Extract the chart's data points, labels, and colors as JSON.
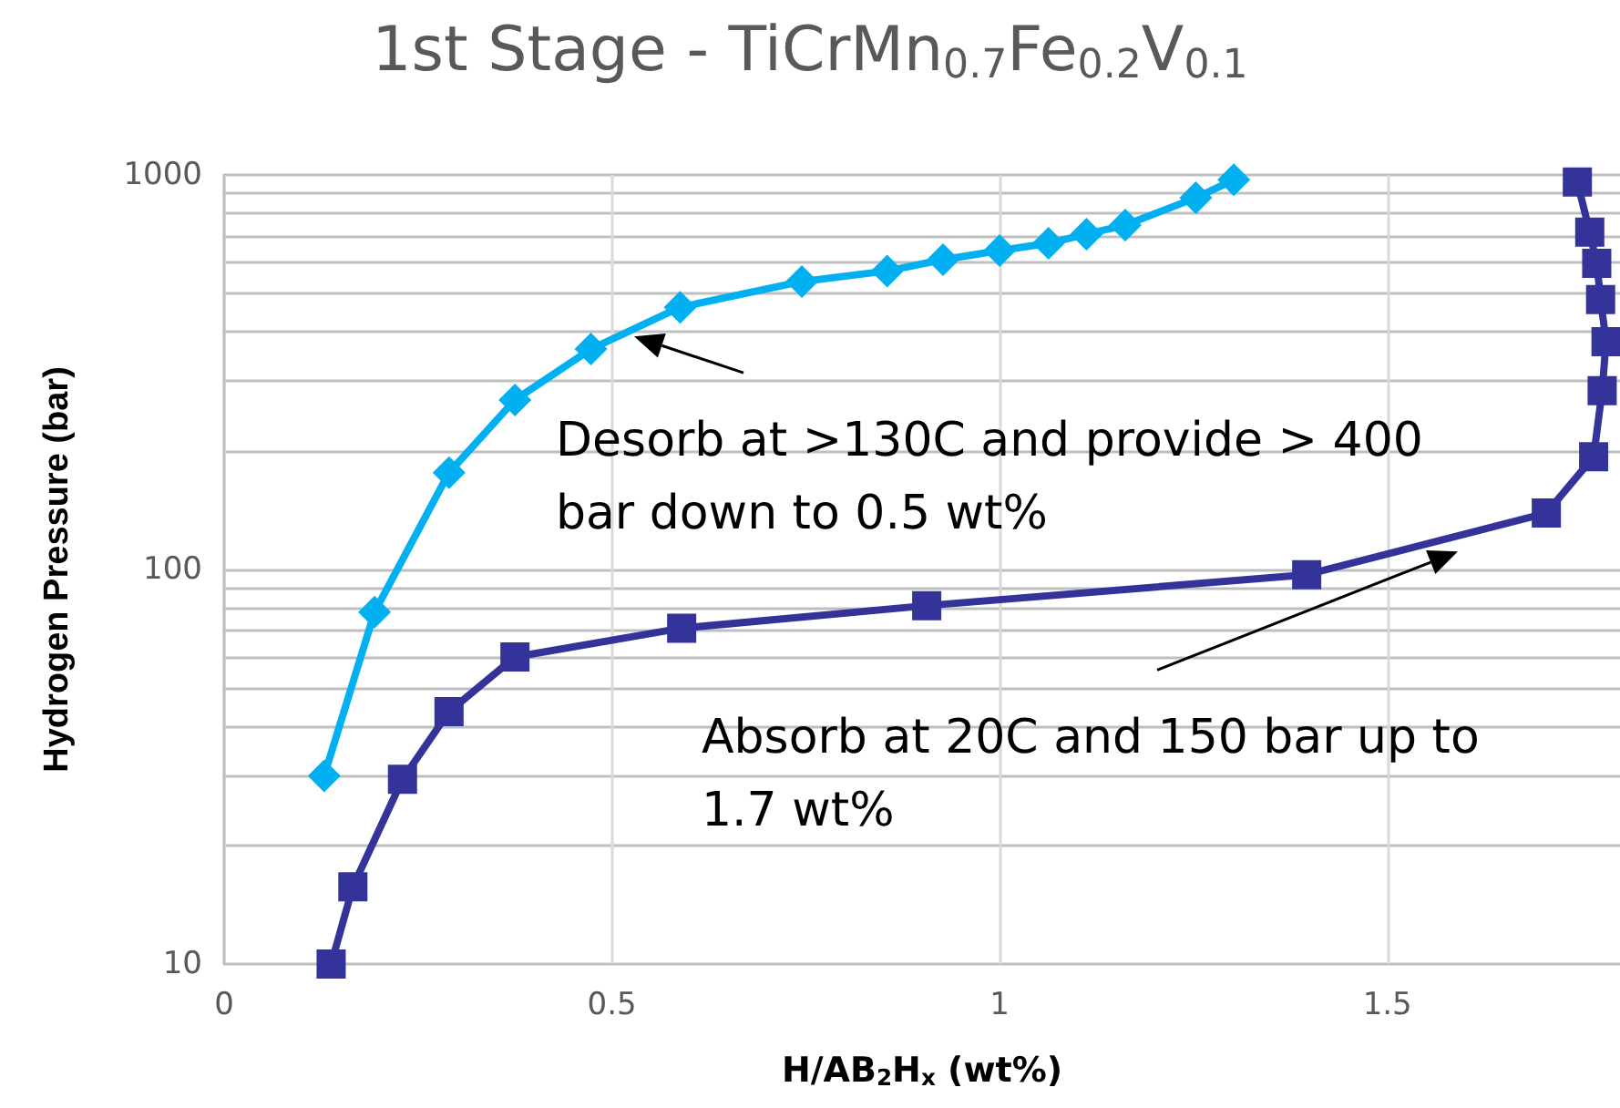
{
  "chart_data": {
    "type": "line",
    "title": "1st Stage - TiCrMn$_{0.7}$Fe$_{0.2}$V$_{0.1}$",
    "xlabel": "H/AB$_{2}$H$_{x}$ (wt%)",
    "ylabel": "Hydrogen Pressure (bar)",
    "log": "y",
    "grid": true,
    "line_style": "solid",
    "xlim": [
      0,
      1.8
    ],
    "xticks": [
      0,
      0.5,
      1,
      1.5
    ],
    "ylim": [
      10,
      1000
    ],
    "yticks": [
      10,
      {
        "value": 20,
        "label": null
      },
      {
        "value": 30,
        "label": null
      },
      {
        "value": 40,
        "label": null
      },
      {
        "value": 50,
        "label": null
      },
      {
        "value": 60,
        "label": null
      },
      {
        "value": 70,
        "label": null
      },
      {
        "value": 80,
        "label": null
      },
      {
        "value": 90,
        "label": null
      },
      100,
      {
        "value": 200,
        "label": null
      },
      {
        "value": 300,
        "label": null
      },
      {
        "value": 400,
        "label": null
      },
      {
        "value": 500,
        "label": null
      },
      {
        "value": 600,
        "label": null
      },
      {
        "value": 700,
        "label": null
      },
      {
        "value": 800,
        "label": null
      },
      {
        "value": 900,
        "label": null
      },
      1000
    ],
    "series": [
      {
        "color": "#00b0f0",
        "marker": "diamond",
        "x": [
          0.129,
          0.194,
          0.29,
          0.375,
          0.473,
          0.588,
          0.745,
          0.855,
          0.927,
          1.0,
          1.063,
          1.112,
          1.162,
          1.253,
          1.302
        ],
        "values": [
          30,
          78,
          176,
          269,
          362,
          462,
          537,
          571,
          610,
          643,
          671,
          708,
          746,
          875,
          972
        ]
      },
      {
        "color": "#333399",
        "marker": "square",
        "x": [
          0.138,
          0.166,
          0.23,
          0.29,
          0.375,
          0.59,
          0.906,
          1.396,
          1.705,
          1.766,
          1.777,
          1.782,
          1.775,
          1.77,
          1.761,
          1.745
        ],
        "values": [
          10,
          15.7,
          29.4,
          43.6,
          60,
          71,
          81,
          97,
          139,
          193,
          284,
          378,
          483,
          597,
          716,
          960
        ]
      }
    ],
    "annotations": [
      "Desorb at >130C and provide > 400\nbar down to 0.5 wt%",
      "Absorb at 20C and 150 bar up to\n1.7 wt%"
    ]
  }
}
